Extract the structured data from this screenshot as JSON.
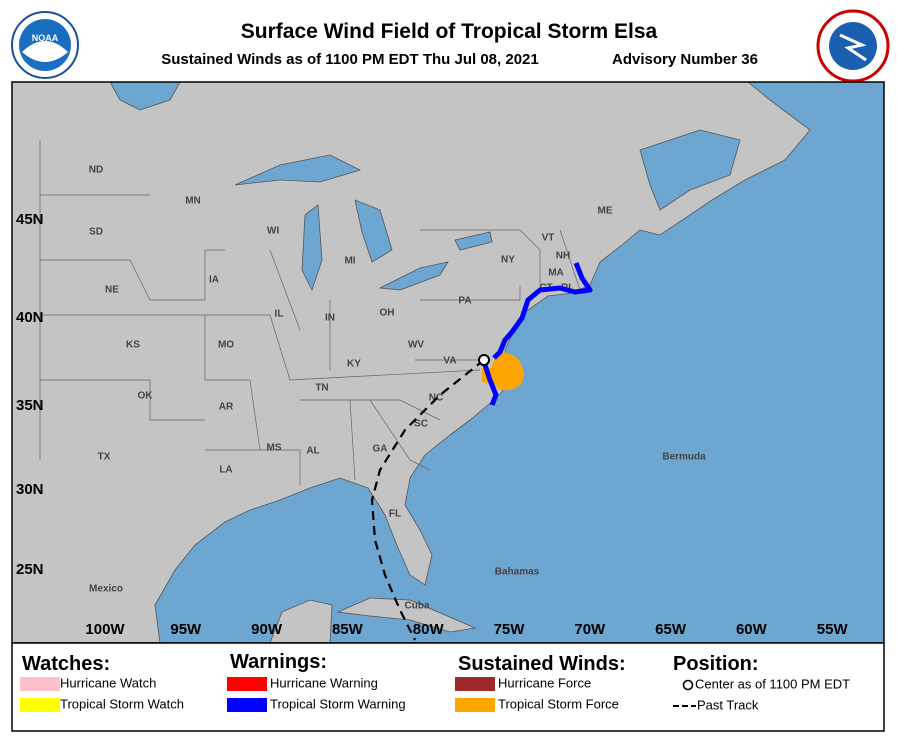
{
  "header": {
    "title": "Surface Wind Field of Tropical Storm Elsa",
    "subtitle": "Sustained Winds as of 1100 PM EDT Thu Jul 08, 2021",
    "advisory": "Advisory Number 36"
  },
  "map": {
    "lat_labels": [
      "45N",
      "40N",
      "35N",
      "30N",
      "25N"
    ],
    "lon_labels": [
      "100W",
      "95W",
      "90W",
      "85W",
      "80W",
      "75W",
      "70W",
      "65W",
      "60W",
      "55W"
    ],
    "places": [
      "ND",
      "SD",
      "MN",
      "WI",
      "MI",
      "NY",
      "VT",
      "NH",
      "ME",
      "MA",
      "CT",
      "RI",
      "PA",
      "NE",
      "IA",
      "IL",
      "IN",
      "OH",
      "KS",
      "MO",
      "KY",
      "WV",
      "VA",
      "OK",
      "AR",
      "TN",
      "NC",
      "SC",
      "GA",
      "AL",
      "MS",
      "LA",
      "TX",
      "FL",
      "Mexico",
      "Cuba",
      "Bahamas",
      "Bermuda"
    ]
  },
  "legend": {
    "watches": {
      "title": "Watches:",
      "items": [
        {
          "label": "Hurricane Watch",
          "color": "#ffc0cb"
        },
        {
          "label": "Tropical Storm Watch",
          "color": "#ffff00"
        }
      ]
    },
    "warnings": {
      "title": "Warnings:",
      "items": [
        {
          "label": "Hurricane Warning",
          "color": "#ff0000"
        },
        {
          "label": "Tropical Storm Warning",
          "color": "#0000ff"
        }
      ]
    },
    "winds": {
      "title": "Sustained Winds:",
      "items": [
        {
          "label": "Hurricane Force",
          "color": "#9c2a2a"
        },
        {
          "label": "Tropical Storm Force",
          "color": "#ffa500"
        }
      ]
    },
    "position": {
      "title": "Position:",
      "center": "Center as of 1100 PM EDT",
      "track": "Past Track"
    }
  }
}
